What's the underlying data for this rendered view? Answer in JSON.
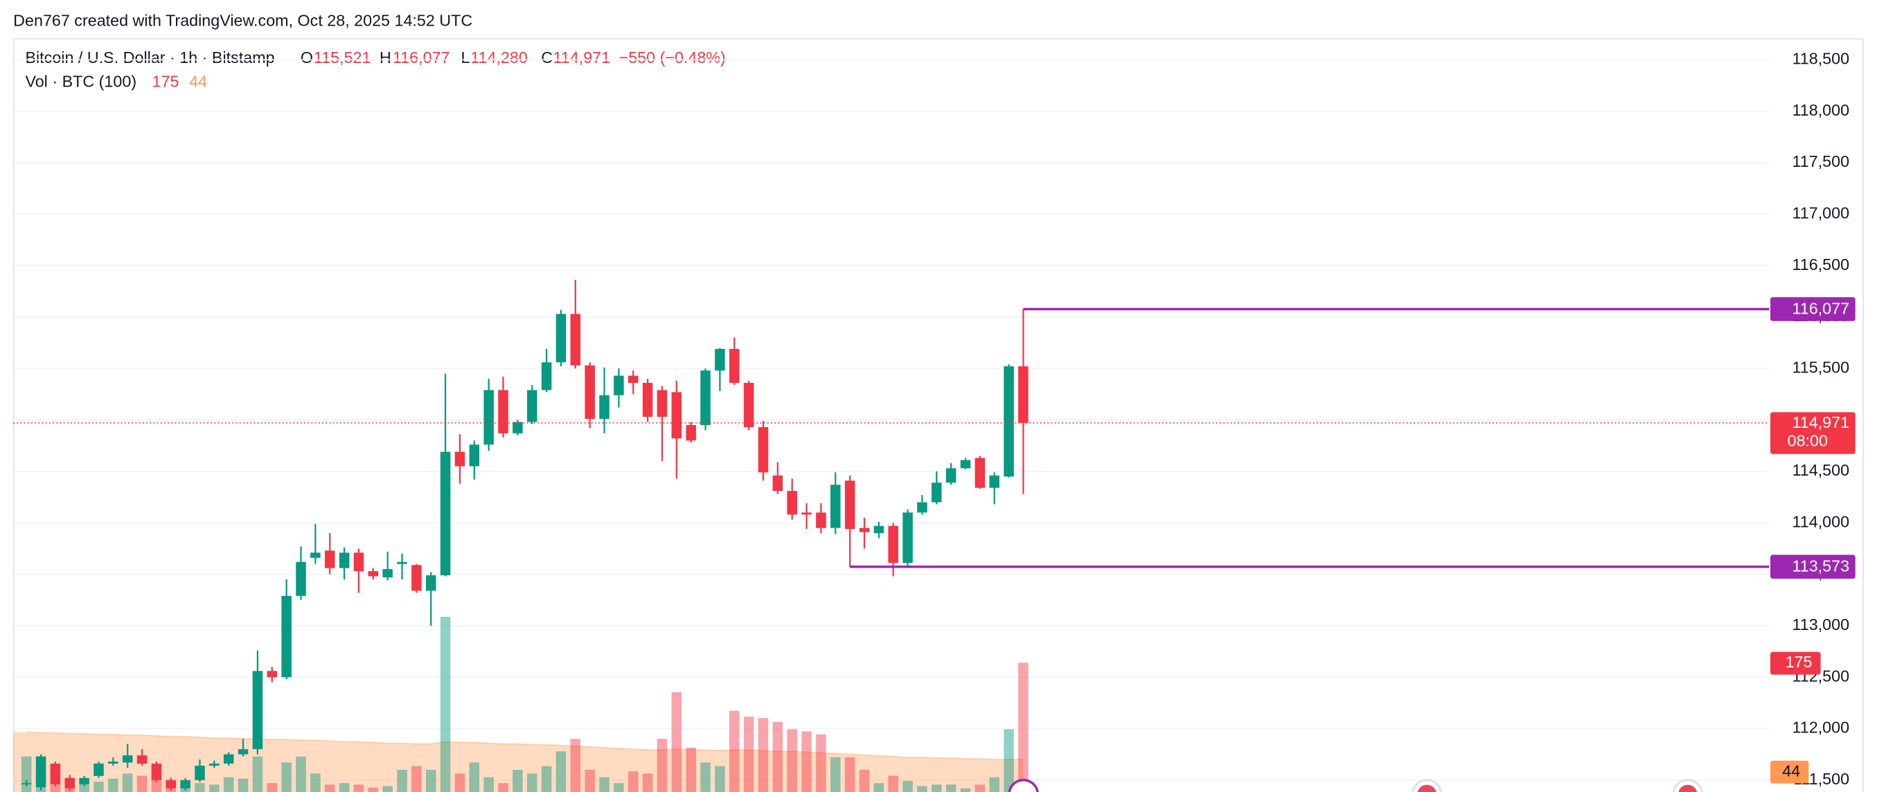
{
  "header": {
    "credit": "Den767 created with TradingView.com, Oct 28, 2025 14:52 UTC"
  },
  "chart_data": {
    "type": "candlestick",
    "title": "Bitcoin / U.S. Dollar · 1h · Bitstamp",
    "ohlc_legend": {
      "o": "O",
      "open": "115,521",
      "h": "H",
      "high": "116,077",
      "l": "L",
      "low": "114,280",
      "c": "C",
      "close": "114,971",
      "change": "−550 (−0.48%)"
    },
    "volume_legend": {
      "name": "Vol · BTC (100)",
      "volume": "175",
      "ma": "44"
    },
    "up_color": "#089981",
    "down_color": "#f23645",
    "ma_color": "#ff9850",
    "open": [
      111460,
      111430,
      111660,
      111520,
      111460,
      111540,
      111660,
      111670,
      111740,
      111660,
      111500,
      111420,
      111500,
      111640,
      111660,
      111750,
      111800,
      112560,
      112500,
      113290,
      113660,
      113730,
      113560,
      113710,
      113530,
      113470,
      113600,
      113590,
      113340,
      113490,
      114690,
      114550,
      114760,
      115290,
      114870,
      114980,
      115290,
      115560,
      116030,
      115530,
      115010,
      115240,
      115430,
      115360,
      115290,
      115270,
      114950,
      114950,
      115480,
      115690,
      115360,
      114930,
      114460,
      114310,
      114100,
      114100,
      113950,
      114410,
      113950,
      113900,
      113970,
      113610,
      114100,
      114200,
      114390,
      114530,
      114630,
      114340,
      114450,
      115521
    ],
    "high": [
      111500,
      111750,
      111680,
      111550,
      111540,
      111680,
      111720,
      111850,
      111800,
      111680,
      111520,
      111520,
      111700,
      111690,
      111770,
      111900,
      112760,
      112600,
      113450,
      113770,
      113990,
      113900,
      113760,
      113750,
      113560,
      113720,
      113700,
      113600,
      113520,
      115450,
      114860,
      114800,
      115400,
      115420,
      115000,
      115340,
      115690,
      116070,
      116360,
      115560,
      115510,
      115500,
      115480,
      115400,
      115330,
      115380,
      114980,
      115500,
      115700,
      115800,
      115380,
      114990,
      114590,
      114430,
      114190,
      114190,
      114490,
      114460,
      114050,
      114010,
      114000,
      114130,
      114270,
      114500,
      114580,
      114630,
      114650,
      114490,
      115540,
      116077
    ],
    "low": [
      111440,
      111400,
      111440,
      111400,
      111440,
      111520,
      111640,
      111620,
      111640,
      111480,
      111400,
      111400,
      111480,
      111620,
      111640,
      111730,
      111750,
      112450,
      112480,
      113250,
      113600,
      113500,
      113450,
      113320,
      113450,
      113440,
      113450,
      113320,
      113000,
      113480,
      114380,
      114420,
      114700,
      114830,
      114850,
      114960,
      115270,
      115520,
      115500,
      114920,
      114870,
      115120,
      115250,
      114980,
      114600,
      114430,
      114780,
      114900,
      115280,
      115340,
      114900,
      114410,
      114280,
      114030,
      113940,
      113900,
      113890,
      113573,
      113750,
      113850,
      113480,
      113580,
      114080,
      114180,
      114370,
      114520,
      114330,
      114180,
      114440,
      114280
    ],
    "close": [
      111470,
      111730,
      111460,
      111420,
      111520,
      111660,
      111680,
      111740,
      111660,
      111500,
      111420,
      111500,
      111640,
      111660,
      111750,
      111800,
      112560,
      112500,
      113290,
      113620,
      113710,
      113560,
      113710,
      113530,
      113480,
      113550,
      113620,
      113340,
      113490,
      114690,
      114550,
      114760,
      115290,
      114870,
      114980,
      115290,
      115560,
      116030,
      115530,
      115010,
      115240,
      115430,
      115360,
      115030,
      115030,
      114820,
      114800,
      115480,
      115690,
      115360,
      114930,
      114490,
      114310,
      114080,
      114080,
      113950,
      114370,
      113940,
      113910,
      113970,
      113610,
      114100,
      114200,
      114390,
      114530,
      114610,
      114340,
      114460,
      115521,
      114971
    ],
    "volume": [
      48,
      20,
      15,
      10,
      12,
      14,
      18,
      25,
      22,
      16,
      8,
      10,
      12,
      10,
      20,
      18,
      48,
      12,
      40,
      48,
      25,
      10,
      12,
      10,
      6,
      8,
      30,
      35,
      30,
      237,
      25,
      40,
      20,
      12,
      30,
      25,
      35,
      55,
      72,
      30,
      20,
      12,
      28,
      25,
      72,
      135,
      60,
      40,
      35,
      110,
      102,
      100,
      95,
      85,
      82,
      78,
      47,
      47,
      30,
      12,
      22,
      15,
      8,
      10,
      10,
      5,
      10,
      20,
      85,
      175
    ],
    "volume_ma": [
      81,
      80,
      80,
      79,
      79,
      78,
      78,
      77,
      77,
      76,
      75,
      75,
      74,
      73,
      73,
      72,
      72,
      71,
      71,
      70,
      70,
      69,
      68,
      68,
      67,
      66,
      66,
      65,
      65,
      68,
      67,
      67,
      66,
      65,
      65,
      64,
      64,
      63,
      62,
      61,
      60,
      59,
      58,
      57,
      57,
      58,
      57,
      57,
      56,
      57,
      57,
      56,
      55,
      55,
      54,
      53,
      52,
      51,
      50,
      49,
      48,
      47,
      47,
      46,
      46,
      45,
      45,
      44,
      44,
      44
    ],
    "ylim": [
      111384,
      118709
    ],
    "volume_ylim": [
      0,
      1020
    ],
    "yticks": [
      {
        "value": 111500,
        "label": "111,500"
      },
      {
        "value": 112000,
        "label": "112,000"
      },
      {
        "value": 112500,
        "label": "112,500"
      },
      {
        "value": 113000,
        "label": "113,000"
      },
      {
        "value": 113500,
        "label": "113,500"
      },
      {
        "value": 114000,
        "label": "114,000"
      },
      {
        "value": 114500,
        "label": "114,500"
      },
      {
        "value": 115000,
        "label": "115,000"
      },
      {
        "value": 115500,
        "label": "115,500"
      },
      {
        "value": 116000,
        "label": "116,000"
      },
      {
        "value": 116500,
        "label": "116,500"
      },
      {
        "value": 117000,
        "label": "117,000"
      },
      {
        "value": 117500,
        "label": "117,500"
      },
      {
        "value": 118000,
        "label": "118,000"
      },
      {
        "value": 118500,
        "label": "118,500"
      }
    ],
    "grid": true,
    "horizontal_lines": [
      {
        "value": 116077,
        "label": "116,077",
        "start": 69,
        "color": "#9c27b0"
      },
      {
        "value": 113573,
        "label": "113,573",
        "start": 57,
        "color": "#9c27b0"
      }
    ],
    "last_price": {
      "value": 114971,
      "label": "114,971",
      "countdown": "08:00"
    },
    "volume_badge": {
      "value": 175,
      "label": "175"
    },
    "ma_badge": {
      "value": 44,
      "label": "44"
    }
  }
}
